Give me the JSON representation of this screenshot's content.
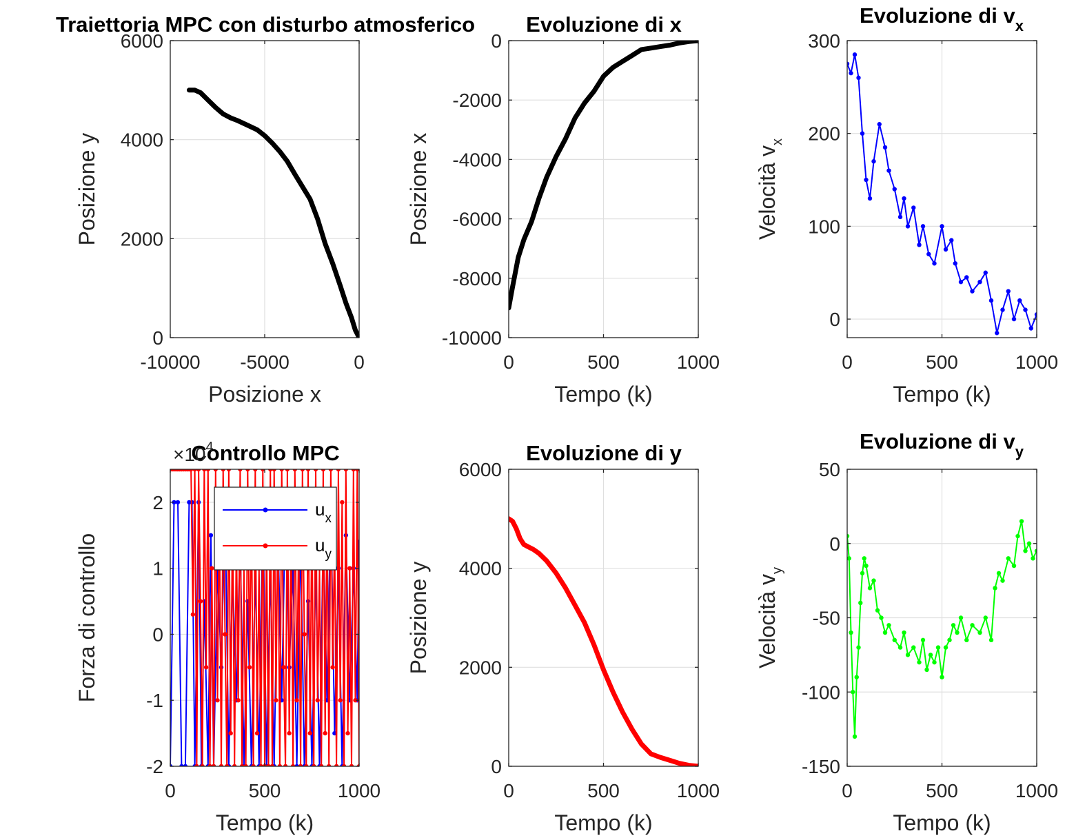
{
  "figure": {
    "background": "#ffffff"
  },
  "chart_data": [
    {
      "type": "line",
      "title": "Traiettoria MPC con disturbo atmosferico",
      "xlabel": "Posizione x",
      "ylabel": "Posizione y",
      "xlim": [
        -10000,
        0
      ],
      "ylim": [
        0,
        6000
      ],
      "xticks": [
        -10000,
        -5000,
        0
      ],
      "yticks": [
        0,
        2000,
        4000,
        6000
      ],
      "xtick_labels": [
        "-10000",
        "-5000",
        "0"
      ],
      "ytick_labels": [
        "0",
        "2000",
        "4000",
        "6000"
      ],
      "grid": true,
      "series": [
        {
          "color": "#000000",
          "x": [
            -9000,
            -8700,
            -8400,
            -8000,
            -7600,
            -7200,
            -6800,
            -6400,
            -5900,
            -5400,
            -5000,
            -4600,
            -4200,
            -3800,
            -3400,
            -3000,
            -2600,
            -2200,
            -1800,
            -1400,
            -1000,
            -700,
            -400,
            -200,
            -50,
            0
          ],
          "y": [
            5000,
            5000,
            4950,
            4800,
            4650,
            4520,
            4440,
            4380,
            4290,
            4200,
            4080,
            3930,
            3760,
            3560,
            3300,
            3050,
            2800,
            2400,
            1900,
            1500,
            1050,
            700,
            400,
            150,
            40,
            0
          ]
        }
      ]
    },
    {
      "type": "line",
      "title": "Evoluzione di x",
      "xlabel": "Tempo (k)",
      "ylabel": "Posizione x",
      "xlim": [
        0,
        1000
      ],
      "ylim": [
        -10000,
        0
      ],
      "xticks": [
        0,
        500,
        1000
      ],
      "yticks": [
        -10000,
        -8000,
        -6000,
        -4000,
        -2000,
        0
      ],
      "xtick_labels": [
        "0",
        "500",
        "1000"
      ],
      "ytick_labels": [
        "-10000",
        "-8000",
        "-6000",
        "-4000",
        "-2000",
        "0"
      ],
      "grid": true,
      "series": [
        {
          "color": "#000000",
          "x": [
            0,
            20,
            50,
            80,
            120,
            160,
            200,
            250,
            300,
            350,
            400,
            450,
            500,
            550,
            600,
            650,
            700,
            750,
            800,
            850,
            900,
            950,
            1000
          ],
          "y": [
            -9000,
            -8300,
            -7300,
            -6700,
            -6100,
            -5300,
            -4600,
            -3900,
            -3300,
            -2600,
            -2100,
            -1700,
            -1200,
            -900,
            -700,
            -500,
            -300,
            -250,
            -200,
            -150,
            -80,
            -30,
            0
          ]
        }
      ]
    },
    {
      "type": "line",
      "title": "Evoluzione di v",
      "title_sub": "x",
      "xlabel": "Tempo (k)",
      "ylabel": "Velocità v",
      "ylabel_sub": "x",
      "xlim": [
        0,
        1000
      ],
      "ylim": [
        -20,
        300
      ],
      "xticks": [
        0,
        500,
        1000
      ],
      "yticks": [
        0,
        100,
        200,
        300
      ],
      "xtick_labels": [
        "0",
        "500",
        "1000"
      ],
      "ytick_labels": [
        "0",
        "100",
        "200",
        "300"
      ],
      "grid": true,
      "series": [
        {
          "color": "#0000ff",
          "marker": true,
          "x": [
            0,
            20,
            40,
            60,
            80,
            100,
            120,
            140,
            170,
            200,
            220,
            250,
            280,
            300,
            320,
            350,
            380,
            400,
            430,
            460,
            500,
            520,
            550,
            570,
            600,
            630,
            660,
            700,
            730,
            760,
            790,
            820,
            850,
            880,
            910,
            940,
            970,
            1000
          ],
          "y": [
            275,
            265,
            285,
            260,
            200,
            150,
            130,
            170,
            210,
            185,
            160,
            140,
            110,
            130,
            100,
            120,
            80,
            100,
            70,
            60,
            100,
            75,
            85,
            60,
            40,
            45,
            30,
            40,
            50,
            20,
            -15,
            10,
            30,
            0,
            20,
            10,
            -10,
            5
          ]
        }
      ]
    },
    {
      "type": "line",
      "title": "Controllo MPC",
      "xlabel": "Tempo (k)",
      "ylabel": "Forza di controllo",
      "exponent_label": "×10",
      "exponent_power": "4",
      "xlim": [
        0,
        1000
      ],
      "ylim": [
        -20000,
        25000
      ],
      "xticks": [
        0,
        500,
        1000
      ],
      "yticks": [
        -20000,
        -10000,
        0,
        10000,
        20000
      ],
      "xtick_labels": [
        "0",
        "500",
        "1000"
      ],
      "ytick_labels": [
        "-2",
        "-1",
        "0",
        "1",
        "2"
      ],
      "grid": true,
      "legend": {
        "position": "top-right",
        "entries": [
          {
            "label": "u",
            "sub": "x",
            "color": "#0000ff"
          },
          {
            "label": "u",
            "sub": "y",
            "color": "#ff0000"
          }
        ]
      },
      "series": [
        {
          "name": "u_x",
          "color": "#0000ff",
          "marker": true,
          "x": [
            0,
            20,
            40,
            60,
            80,
            100,
            115,
            130,
            150,
            165,
            180,
            200,
            215,
            230,
            250,
            270,
            290,
            310,
            330,
            350,
            370,
            390,
            410,
            430,
            450,
            470,
            490,
            510,
            530,
            550,
            570,
            590,
            610,
            630,
            650,
            670,
            690,
            710,
            730,
            750,
            770,
            790,
            810,
            830,
            850,
            870,
            890,
            910,
            930,
            950,
            970,
            990,
            1000
          ],
          "y": [
            -20000,
            20000,
            20000,
            -20000,
            -20000,
            20000,
            20000,
            -20000,
            20000,
            -20000,
            5000,
            -20000,
            15000,
            -20000,
            10000,
            -5000,
            20000,
            -20000,
            10000,
            -10000,
            15000,
            -20000,
            5000,
            -20000,
            10000,
            -20000,
            20000,
            -20000,
            10000,
            -20000,
            15000,
            -10000,
            20000,
            -5000,
            10000,
            -20000,
            15000,
            -20000,
            5000,
            -20000,
            10000,
            -20000,
            15000,
            -10000,
            20000,
            -15000,
            10000,
            -20000,
            15000,
            -10000,
            10000,
            -10000,
            14000
          ]
        },
        {
          "name": "u_y",
          "color": "#ff0000",
          "marker": true,
          "x": [
            0,
            10,
            20,
            30,
            40,
            50,
            60,
            70,
            80,
            90,
            100,
            110,
            120,
            130,
            140,
            150,
            160,
            170,
            180,
            190,
            200,
            210,
            220,
            230,
            240,
            250,
            260,
            270,
            280,
            290,
            300,
            310,
            320,
            330,
            340,
            350,
            360,
            370,
            380,
            390,
            400,
            410,
            420,
            430,
            440,
            450,
            460,
            470,
            480,
            490,
            500,
            510,
            520,
            530,
            540,
            550,
            560,
            570,
            580,
            590,
            600,
            610,
            620,
            630,
            640,
            650,
            660,
            670,
            680,
            690,
            700,
            710,
            720,
            730,
            740,
            750,
            760,
            770,
            780,
            790,
            800,
            810,
            820,
            830,
            840,
            850,
            860,
            870,
            880,
            890,
            900,
            910,
            920,
            930,
            940,
            950,
            960,
            970,
            980,
            990,
            1000
          ],
          "y": [
            25000,
            25000,
            25000,
            25000,
            25000,
            25000,
            25000,
            25000,
            25000,
            25000,
            25000,
            25000,
            3000,
            25000,
            -20000,
            25000,
            5000,
            -20000,
            25000,
            -5000,
            25000,
            -20000,
            10000,
            -20000,
            25000,
            -10000,
            20000,
            -20000,
            25000,
            0,
            -20000,
            25000,
            -15000,
            20000,
            -20000,
            15000,
            -10000,
            25000,
            -20000,
            10000,
            -20000,
            25000,
            -5000,
            20000,
            -20000,
            25000,
            -15000,
            10000,
            -20000,
            25000,
            -20000,
            15000,
            -20000,
            25000,
            -20000,
            25000,
            -10000,
            20000,
            -20000,
            25000,
            -5000,
            -20000,
            25000,
            -15000,
            20000,
            -20000,
            25000,
            -10000,
            15000,
            -20000,
            25000,
            0,
            -20000,
            25000,
            -15000,
            20000,
            -20000,
            25000,
            -10000,
            10000,
            -20000,
            25000,
            -15000,
            20000,
            -20000,
            25000,
            -5000,
            15000,
            -20000,
            25000,
            -10000,
            20000,
            -20000,
            25000,
            -15000,
            10000,
            -20000,
            25000,
            -10000,
            25000,
            -20000
          ]
        }
      ]
    },
    {
      "type": "line",
      "title": "Evoluzione di y",
      "xlabel": "Tempo (k)",
      "ylabel": "Posizione y",
      "xlim": [
        0,
        1000
      ],
      "ylim": [
        0,
        6000
      ],
      "xticks": [
        0,
        500,
        1000
      ],
      "yticks": [
        0,
        2000,
        4000,
        6000
      ],
      "xtick_labels": [
        "0",
        "500",
        "1000"
      ],
      "ytick_labels": [
        "0",
        "2000",
        "4000",
        "6000"
      ],
      "grid": true,
      "series": [
        {
          "color": "#ff0000",
          "x": [
            0,
            20,
            40,
            60,
            80,
            100,
            130,
            160,
            200,
            250,
            300,
            350,
            400,
            450,
            500,
            550,
            600,
            650,
            700,
            750,
            800,
            850,
            900,
            950,
            1000
          ],
          "y": [
            5000,
            4950,
            4800,
            4600,
            4480,
            4440,
            4380,
            4300,
            4150,
            3900,
            3600,
            3250,
            2900,
            2450,
            1950,
            1500,
            1100,
            750,
            450,
            250,
            180,
            120,
            60,
            20,
            0
          ]
        }
      ]
    },
    {
      "type": "line",
      "title": "Evoluzione di v",
      "title_sub": "y",
      "xlabel": "Tempo (k)",
      "ylabel": "Velocità v",
      "ylabel_sub": "y",
      "xlim": [
        0,
        1000
      ],
      "ylim": [
        -150,
        50
      ],
      "xticks": [
        0,
        500,
        1000
      ],
      "yticks": [
        -150,
        -100,
        -50,
        0,
        50
      ],
      "xtick_labels": [
        "0",
        "500",
        "1000"
      ],
      "ytick_labels": [
        "-150",
        "-100",
        "-50",
        "0",
        "50"
      ],
      "grid": true,
      "series": [
        {
          "color": "#00ff00",
          "marker": true,
          "x": [
            0,
            10,
            20,
            30,
            40,
            50,
            60,
            70,
            80,
            90,
            100,
            120,
            140,
            160,
            180,
            200,
            220,
            250,
            280,
            300,
            320,
            350,
            380,
            400,
            420,
            440,
            460,
            480,
            500,
            520,
            540,
            560,
            580,
            600,
            630,
            660,
            700,
            730,
            760,
            780,
            800,
            820,
            850,
            880,
            900,
            920,
            940,
            960,
            980,
            1000
          ],
          "y": [
            5,
            -10,
            -60,
            -100,
            -130,
            -90,
            -70,
            -40,
            -20,
            -10,
            -15,
            -30,
            -25,
            -45,
            -50,
            -60,
            -55,
            -65,
            -70,
            -60,
            -75,
            -70,
            -80,
            -65,
            -85,
            -75,
            -80,
            -70,
            -90,
            -70,
            -65,
            -55,
            -60,
            -50,
            -65,
            -55,
            -60,
            -50,
            -65,
            -30,
            -20,
            -25,
            -10,
            -15,
            5,
            15,
            -5,
            0,
            -10,
            -5
          ]
        }
      ]
    }
  ]
}
